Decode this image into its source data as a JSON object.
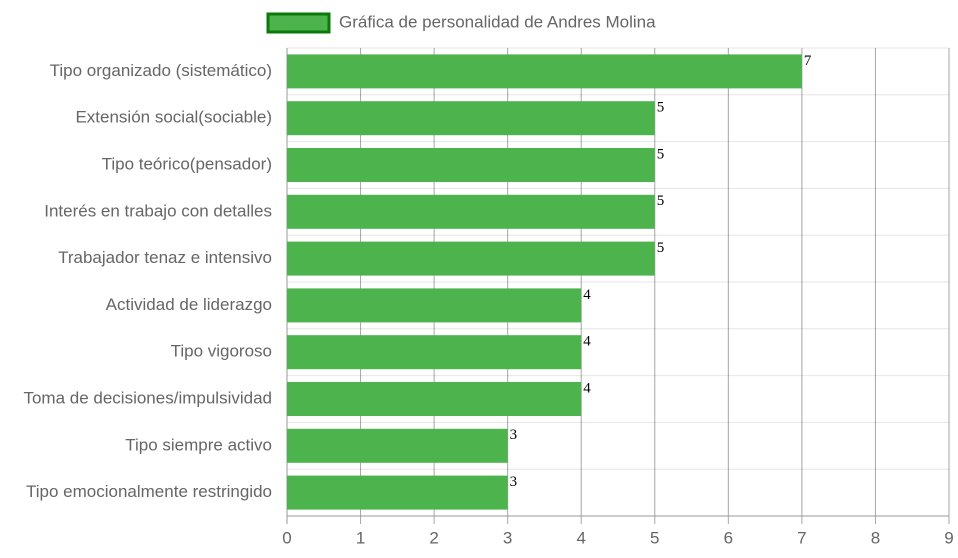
{
  "chart_data": {
    "type": "hbar",
    "categories": [
      "Tipo organizado (sistemático)",
      "Extensión social(sociable)",
      "Tipo teórico(pensador)",
      "Interés en trabajo con detalles",
      "Trabajador tenaz e intensivo",
      "Actividad de liderazgo",
      "Tipo vigoroso",
      "Toma de decisiones/impulsividad",
      "Tipo siempre activo",
      "Tipo emocionalmente restringido"
    ],
    "series": [
      {
        "name": "Gráfica de personalidad de Andres Molina",
        "color": "#4db34d",
        "border_color": "#0a7a0a",
        "values": [
          7,
          5,
          5,
          5,
          5,
          4,
          4,
          4,
          3,
          3
        ]
      }
    ],
    "xlim": [
      0,
      9
    ],
    "xticks": [
      0,
      1,
      2,
      3,
      4,
      5,
      6,
      7,
      8,
      9
    ],
    "grid": true,
    "legend": "top"
  }
}
